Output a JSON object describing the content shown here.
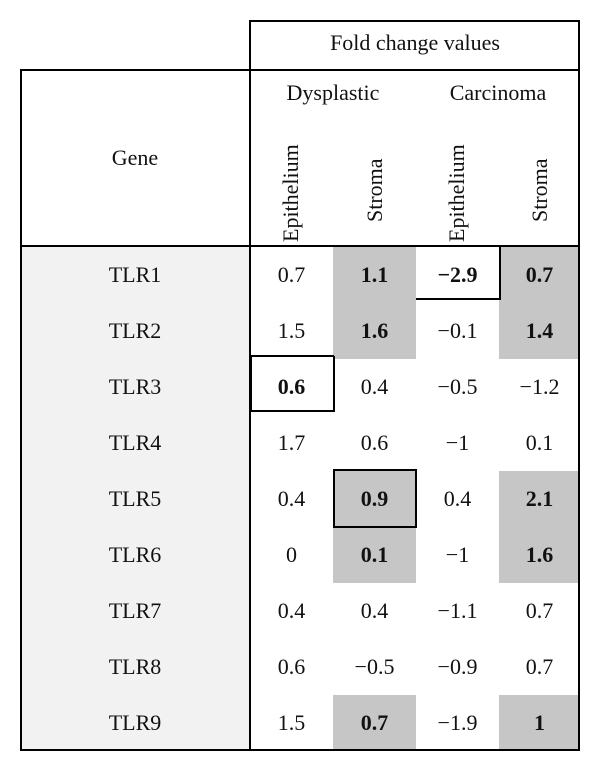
{
  "table": {
    "title": "Fold change values",
    "gene_header": "Gene",
    "groups": [
      "Dysplastic",
      "Carcinoma"
    ],
    "columns": [
      "Epithelium",
      "Stroma",
      "Epithelium",
      "Stroma"
    ],
    "rows": [
      {
        "gene": "TLR1",
        "values": [
          "0.7",
          "1.1",
          "−2.9",
          "0.7"
        ],
        "bold": [
          false,
          true,
          true,
          true
        ],
        "shaded": [
          false,
          true,
          false,
          true
        ]
      },
      {
        "gene": "TLR2",
        "values": [
          "1.5",
          "1.6",
          "−0.1",
          "1.4"
        ],
        "bold": [
          false,
          true,
          false,
          true
        ],
        "shaded": [
          false,
          true,
          false,
          true
        ]
      },
      {
        "gene": "TLR3",
        "values": [
          "0.6",
          "0.4",
          "−0.5",
          "−1.2"
        ],
        "bold": [
          true,
          false,
          false,
          false
        ],
        "shaded": [
          false,
          false,
          false,
          false
        ]
      },
      {
        "gene": "TLR4",
        "values": [
          "1.7",
          "0.6",
          "−1",
          "0.1"
        ],
        "bold": [
          false,
          false,
          false,
          false
        ],
        "shaded": [
          false,
          false,
          false,
          false
        ]
      },
      {
        "gene": "TLR5",
        "values": [
          "0.4",
          "0.9",
          "0.4",
          "2.1"
        ],
        "bold": [
          false,
          true,
          false,
          true
        ],
        "shaded": [
          false,
          true,
          false,
          true
        ]
      },
      {
        "gene": "TLR6",
        "values": [
          "0",
          "0.1",
          "−1",
          "1.6"
        ],
        "bold": [
          false,
          true,
          false,
          true
        ],
        "shaded": [
          false,
          true,
          false,
          true
        ]
      },
      {
        "gene": "TLR7",
        "values": [
          "0.4",
          "0.4",
          "−1.1",
          "0.7"
        ],
        "bold": [
          false,
          false,
          false,
          false
        ],
        "shaded": [
          false,
          false,
          false,
          false
        ]
      },
      {
        "gene": "TLR8",
        "values": [
          "0.6",
          "−0.5",
          "−0.9",
          "0.7"
        ],
        "bold": [
          false,
          false,
          false,
          false
        ],
        "shaded": [
          false,
          false,
          false,
          false
        ]
      },
      {
        "gene": "TLR9",
        "values": [
          "1.5",
          "0.7",
          "−1.9",
          "1"
        ],
        "bold": [
          false,
          true,
          false,
          true
        ],
        "shaded": [
          false,
          true,
          false,
          true
        ]
      }
    ]
  }
}
